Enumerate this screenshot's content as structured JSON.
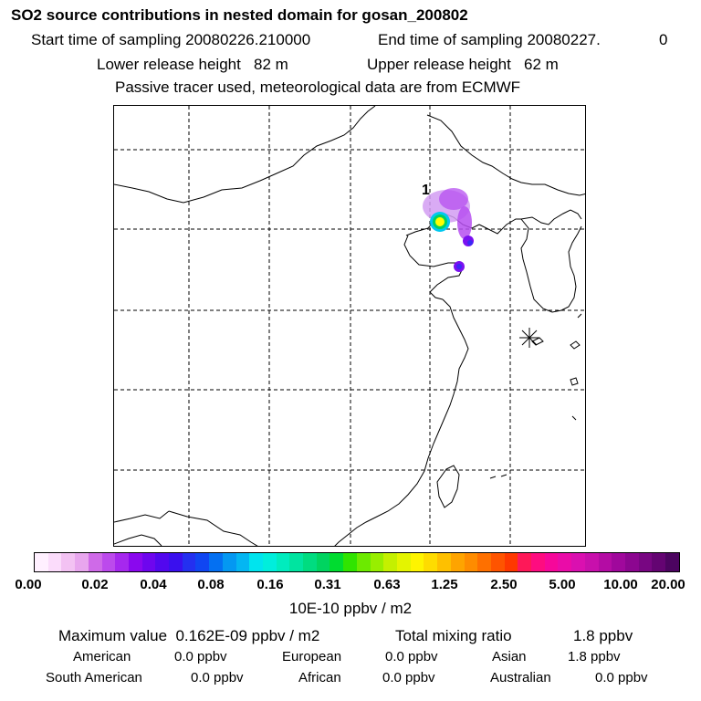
{
  "header": {
    "title": "SO2 source contributions in nested domain for gosan_200802",
    "start_label": "Start time of sampling 20080226.210000",
    "end_label": "End time of sampling 20080227.",
    "end_hour": "0",
    "lower_release": "Lower release height   82 m",
    "upper_release": "Upper release height   62 m",
    "tracer_info": "Passive tracer used, meteorological data are from ECMWF"
  },
  "map": {
    "source_label": "1",
    "receptor_marker": "asterisk-icon",
    "plume_colors": [
      "#d29cf2",
      "#b64ff0",
      "#7a10f0",
      "#3a28f5",
      "#00c8f0",
      "#ffff00",
      "#00d060"
    ]
  },
  "colorbar": {
    "tick_labels": [
      "0.00",
      "0.02",
      "0.04",
      "0.08",
      "0.16",
      "0.31",
      "0.63",
      "1.25",
      "2.50",
      "5.00",
      "10.00",
      "20.00"
    ],
    "colors": [
      "#fff0ff",
      "#fbdcfb",
      "#f3c2f3",
      "#e8a6ee",
      "#cf6ae8",
      "#bc4aec",
      "#a628ee",
      "#8a08ee",
      "#6e06ee",
      "#5208ee",
      "#3a10ee",
      "#2430f0",
      "#1046f2",
      "#0470f2",
      "#0498f2",
      "#04b6f2",
      "#00e4ee",
      "#00eedc",
      "#00ecbe",
      "#00e4a0",
      "#00dc80",
      "#00d460",
      "#00dc30",
      "#30e400",
      "#6cea00",
      "#98ee00",
      "#c4f000",
      "#e4f400",
      "#fef400",
      "#fedc00",
      "#fec000",
      "#fea400",
      "#fe8c00",
      "#fe7000",
      "#fe5400",
      "#fe3800",
      "#fe1858",
      "#fe0c80",
      "#f6089a",
      "#ea0ca8",
      "#da10b0",
      "#c810ac",
      "#b40ca4",
      "#a0089c",
      "#8c0690",
      "#780682",
      "#640472",
      "#4c0460"
    ],
    "unit_label": "10E-10 ppbv / m2"
  },
  "summary": {
    "max_value": "Maximum value  0.162E-09 ppbv / m2",
    "total_label": "Total mixing ratio",
    "total_value": "1.8 ppbv",
    "regions": [
      {
        "name": "American",
        "value": "0.0 ppbv"
      },
      {
        "name": "European",
        "value": "0.0 ppbv"
      },
      {
        "name": "Asian",
        "value": "1.8 ppbv"
      },
      {
        "name": "South American",
        "value": "0.0 ppbv"
      },
      {
        "name": "African",
        "value": "0.0 ppbv"
      },
      {
        "name": "Australian",
        "value": "0.0 ppbv"
      }
    ]
  }
}
